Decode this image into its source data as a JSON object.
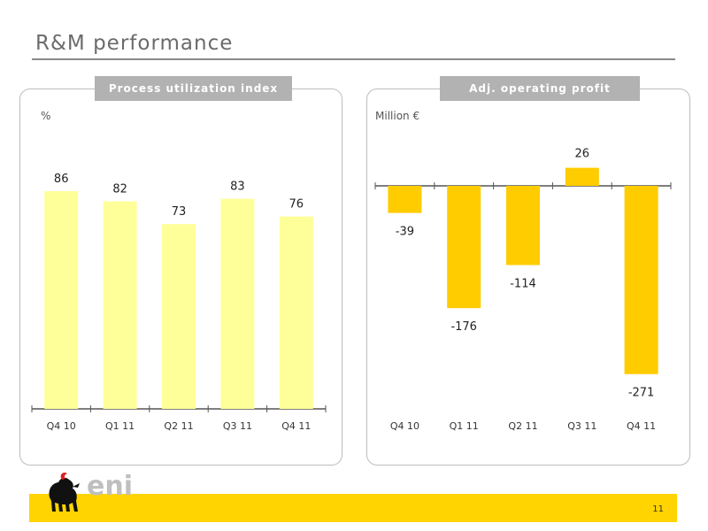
{
  "slide": {
    "title": "R&M performance",
    "page_number": "11",
    "logo_text": "eni"
  },
  "colors": {
    "light_bar": "#ffff99",
    "dark_bar": "#ffcc00",
    "footer": "#ffd400",
    "panel_header": "#b2b2b2"
  },
  "chart_data": [
    {
      "type": "bar",
      "title": "Process utilization index",
      "ylabel": "%",
      "categories": [
        "Q4 10",
        "Q1 11",
        "Q2 11",
        "Q3 11",
        "Q4 11"
      ],
      "values": [
        86,
        82,
        73,
        83,
        76
      ],
      "data_labels": [
        "86",
        "82",
        "73",
        "83",
        "76"
      ],
      "ylim": [
        0,
        100
      ],
      "grid": false,
      "color": "#ffff99"
    },
    {
      "type": "bar",
      "title": "Adj. operating profit",
      "ylabel": "Million €",
      "categories": [
        "Q4 10",
        "Q1 11",
        "Q2 11",
        "Q3 11",
        "Q4 11"
      ],
      "values": [
        -39,
        -176,
        -114,
        26,
        -271
      ],
      "data_labels": [
        "-39",
        "-176",
        "-114",
        "26",
        "-271"
      ],
      "ylim": [
        -271,
        26
      ],
      "grid": false,
      "color": "#ffcc00"
    }
  ]
}
